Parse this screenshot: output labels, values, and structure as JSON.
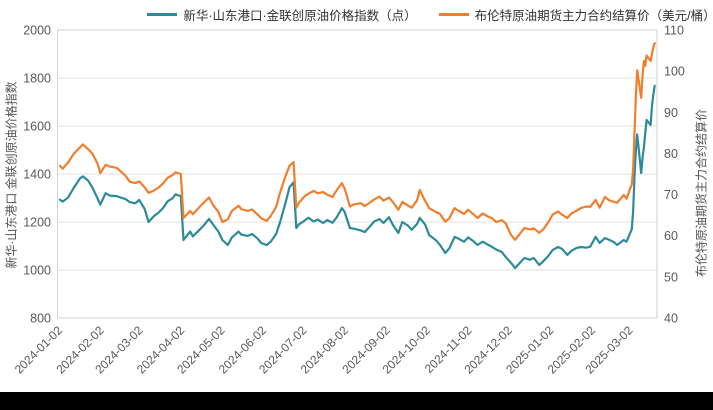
{
  "page": {
    "background": "#ffffff",
    "bottom_bar_color": "#000000",
    "text_color": "#595959",
    "grid_color": "#e2e2e2",
    "frame_color": "#c9d3da"
  },
  "chart_data": {
    "type": "line",
    "title": "",
    "grid": true,
    "legend_position": "top",
    "x_type": "date",
    "x_range": [
      "2024-01-02",
      "2025-03-21"
    ],
    "x_ticks": [
      "2024-01-02",
      "2024-02-02",
      "2024-03-02",
      "2024-04-02",
      "2024-05-02",
      "2024-06-02",
      "2024-07-02",
      "2024-08-02",
      "2024-09-02",
      "2024-10-02",
      "2024-11-02",
      "2024-12-02",
      "2025-01-02",
      "2025-02-02",
      "2025-03-02"
    ],
    "left_axis": {
      "title": "新华·山东港口 金联创原油价格指数",
      "min": 800,
      "max": 2000,
      "ticks": [
        2000,
        1800,
        1600,
        1400,
        1200,
        1000,
        800
      ]
    },
    "right_axis": {
      "title": "布伦特原油期货主力合约结算价",
      "min": 40,
      "max": 110,
      "ticks": [
        110,
        100,
        90,
        80,
        70,
        60,
        50,
        40
      ]
    },
    "series": [
      {
        "name": "新华·山东港口·金联创原油价格指数（点）",
        "color": "#2C8A99",
        "axis": "left",
        "value_index": 1
      },
      {
        "name": "布伦特原油期货主力合约结算价（美元/桶）",
        "color": "#F07E2E",
        "axis": "right",
        "value_index": 2
      }
    ],
    "points": [
      [
        "2024-01-02",
        1293,
        77.0
      ],
      [
        "2024-01-04",
        1285,
        76.3
      ],
      [
        "2024-01-08",
        1302,
        77.8
      ],
      [
        "2024-01-12",
        1340,
        79.8
      ],
      [
        "2024-01-17",
        1382,
        81.5
      ],
      [
        "2024-01-19",
        1390,
        82.2
      ],
      [
        "2024-01-23",
        1372,
        81.0
      ],
      [
        "2024-01-26",
        1345,
        80.0
      ],
      [
        "2024-01-30",
        1298,
        77.5
      ],
      [
        "2024-02-01",
        1272,
        75.2
      ],
      [
        "2024-02-05",
        1320,
        77.2
      ],
      [
        "2024-02-08",
        1310,
        76.8
      ],
      [
        "2024-02-13",
        1308,
        76.5
      ],
      [
        "2024-02-15",
        1304,
        76.0
      ],
      [
        "2024-02-20",
        1295,
        74.5
      ],
      [
        "2024-02-23",
        1283,
        73.1
      ],
      [
        "2024-02-27",
        1278,
        72.8
      ],
      [
        "2024-03-01",
        1292,
        73.2
      ],
      [
        "2024-03-05",
        1255,
        71.8
      ],
      [
        "2024-03-08",
        1200,
        70.4
      ],
      [
        "2024-03-12",
        1225,
        71.0
      ],
      [
        "2024-03-15",
        1237,
        71.6
      ],
      [
        "2024-03-19",
        1260,
        72.8
      ],
      [
        "2024-03-22",
        1285,
        74.0
      ],
      [
        "2024-03-26",
        1300,
        74.8
      ],
      [
        "2024-03-28",
        1315,
        75.4
      ],
      [
        "2024-04-01",
        1308,
        75.0
      ],
      [
        "2024-04-03",
        1125,
        64.3
      ],
      [
        "2024-04-08",
        1160,
        66.0
      ],
      [
        "2024-04-10",
        1140,
        65.2
      ],
      [
        "2024-04-15",
        1168,
        67.0
      ],
      [
        "2024-04-18",
        1185,
        68.0
      ],
      [
        "2024-04-22",
        1213,
        69.3
      ],
      [
        "2024-04-25",
        1190,
        67.5
      ],
      [
        "2024-04-29",
        1160,
        65.8
      ],
      [
        "2024-05-02",
        1125,
        63.3
      ],
      [
        "2024-05-06",
        1104,
        64.0
      ],
      [
        "2024-05-09",
        1135,
        66.0
      ],
      [
        "2024-05-14",
        1160,
        67.3
      ],
      [
        "2024-05-16",
        1148,
        66.5
      ],
      [
        "2024-05-21",
        1142,
        66.0
      ],
      [
        "2024-05-24",
        1150,
        66.4
      ],
      [
        "2024-05-28",
        1132,
        65.2
      ],
      [
        "2024-05-31",
        1112,
        64.2
      ],
      [
        "2024-06-04",
        1104,
        63.6
      ],
      [
        "2024-06-07",
        1118,
        64.8
      ],
      [
        "2024-06-11",
        1150,
        67.0
      ],
      [
        "2024-06-14",
        1200,
        70.5
      ],
      [
        "2024-06-18",
        1280,
        74.5
      ],
      [
        "2024-06-21",
        1345,
        77.0
      ],
      [
        "2024-06-24",
        1365,
        77.9
      ],
      [
        "2024-06-26",
        1175,
        66.8
      ],
      [
        "2024-06-28",
        1190,
        68.0
      ],
      [
        "2024-07-02",
        1205,
        69.5
      ],
      [
        "2024-07-05",
        1218,
        70.2
      ],
      [
        "2024-07-09",
        1202,
        70.9
      ],
      [
        "2024-07-12",
        1210,
        70.3
      ],
      [
        "2024-07-16",
        1196,
        70.6
      ],
      [
        "2024-07-19",
        1208,
        70.0
      ],
      [
        "2024-07-23",
        1197,
        69.4
      ],
      [
        "2024-07-26",
        1218,
        71.0
      ],
      [
        "2024-07-30",
        1258,
        72.8
      ],
      [
        "2024-08-01",
        1242,
        71.5
      ],
      [
        "2024-08-05",
        1175,
        67.1
      ],
      [
        "2024-08-08",
        1172,
        67.6
      ],
      [
        "2024-08-13",
        1165,
        67.9
      ],
      [
        "2024-08-16",
        1158,
        67.2
      ],
      [
        "2024-08-20",
        1182,
        68.1
      ],
      [
        "2024-08-23",
        1202,
        68.8
      ],
      [
        "2024-08-27",
        1212,
        69.5
      ],
      [
        "2024-08-30",
        1196,
        68.5
      ],
      [
        "2024-09-03",
        1220,
        69.3
      ],
      [
        "2024-09-06",
        1188,
        68.2
      ],
      [
        "2024-09-10",
        1154,
        66.3
      ],
      [
        "2024-09-13",
        1200,
        68.2
      ],
      [
        "2024-09-17",
        1186,
        67.4
      ],
      [
        "2024-09-20",
        1168,
        66.8
      ],
      [
        "2024-09-24",
        1192,
        68.6
      ],
      [
        "2024-09-26",
        1217,
        71.1
      ],
      [
        "2024-09-30",
        1190,
        68.5
      ],
      [
        "2024-10-03",
        1146,
        66.7
      ],
      [
        "2024-10-08",
        1124,
        65.8
      ],
      [
        "2024-10-11",
        1105,
        65.3
      ],
      [
        "2024-10-15",
        1071,
        63.4
      ],
      [
        "2024-10-18",
        1090,
        64.2
      ],
      [
        "2024-10-22",
        1138,
        66.7
      ],
      [
        "2024-10-25",
        1130,
        66.0
      ],
      [
        "2024-10-29",
        1118,
        65.3
      ],
      [
        "2024-11-01",
        1136,
        66.3
      ],
      [
        "2024-11-05",
        1120,
        65.2
      ],
      [
        "2024-11-08",
        1104,
        64.3
      ],
      [
        "2024-11-12",
        1118,
        65.4
      ],
      [
        "2024-11-15",
        1108,
        64.8
      ],
      [
        "2024-11-19",
        1096,
        64.2
      ],
      [
        "2024-11-22",
        1085,
        63.3
      ],
      [
        "2024-11-26",
        1076,
        63.8
      ],
      [
        "2024-11-29",
        1054,
        63.0
      ],
      [
        "2024-12-03",
        1030,
        60.2
      ],
      [
        "2024-12-06",
        1008,
        59.0
      ],
      [
        "2024-12-10",
        1032,
        60.6
      ],
      [
        "2024-12-13",
        1050,
        61.9
      ],
      [
        "2024-12-17",
        1043,
        61.5
      ],
      [
        "2024-12-20",
        1050,
        61.8
      ],
      [
        "2024-12-24",
        1021,
        60.7
      ],
      [
        "2024-12-27",
        1036,
        61.5
      ],
      [
        "2024-12-31",
        1060,
        63.4
      ],
      [
        "2025-01-03",
        1083,
        65.1
      ],
      [
        "2025-01-07",
        1096,
        65.9
      ],
      [
        "2025-01-10",
        1088,
        65.1
      ],
      [
        "2025-01-14",
        1063,
        64.3
      ],
      [
        "2025-01-17",
        1080,
        65.4
      ],
      [
        "2025-01-21",
        1092,
        66.1
      ],
      [
        "2025-01-24",
        1096,
        66.7
      ],
      [
        "2025-01-28",
        1093,
        67.1
      ],
      [
        "2025-01-31",
        1097,
        67.0
      ],
      [
        "2025-02-04",
        1138,
        68.7
      ],
      [
        "2025-02-07",
        1113,
        66.8
      ],
      [
        "2025-02-11",
        1133,
        69.4
      ],
      [
        "2025-02-14",
        1126,
        68.6
      ],
      [
        "2025-02-18",
        1115,
        68.2
      ],
      [
        "2025-02-20",
        1104,
        68.0
      ],
      [
        "2025-02-25",
        1125,
        69.9
      ],
      [
        "2025-02-27",
        1118,
        69.0
      ],
      [
        "2025-03-03",
        1170,
        72.5
      ],
      [
        "2025-03-04",
        1250,
        76.5
      ],
      [
        "2025-03-05",
        1390,
        85.0
      ],
      [
        "2025-03-06",
        1500,
        94.0
      ],
      [
        "2025-03-07",
        1565,
        100.2
      ],
      [
        "2025-03-10",
        1404,
        93.5
      ],
      [
        "2025-03-11",
        1470,
        99.0
      ],
      [
        "2025-03-12",
        1510,
        102.5
      ],
      [
        "2025-03-13",
        1572,
        101.3
      ],
      [
        "2025-03-14",
        1625,
        103.8
      ],
      [
        "2025-03-17",
        1604,
        102.5
      ],
      [
        "2025-03-18",
        1685,
        104.3
      ],
      [
        "2025-03-19",
        1730,
        105.8
      ],
      [
        "2025-03-20",
        1768,
        106.8
      ]
    ]
  }
}
